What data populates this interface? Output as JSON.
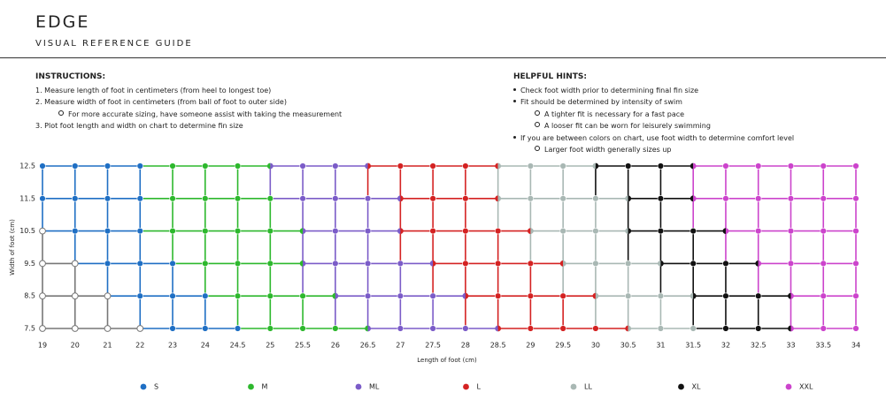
{
  "header": {
    "title": "EDGE",
    "subtitle": "VISUAL REFERENCE GUIDE"
  },
  "instructions": {
    "heading": "INSTRUCTIONS:",
    "items": [
      {
        "text": "1. Measure length of foot in centimeters (from heel to longest toe)"
      },
      {
        "text": "2. Measure width of foot in centimeters (from ball of foot to outer side)",
        "sub": [
          "For more accurate sizing, have someone assist with taking the measurement"
        ]
      },
      {
        "text": "3. Plot foot length and width on chart to determine fin size"
      }
    ]
  },
  "hints": {
    "heading": "HELPFUL HINTS:",
    "items": [
      {
        "text": "Check foot width prior to determining final fin size"
      },
      {
        "text": "Fit should be determined by intensity of swim",
        "sub": [
          "A tighter fit is necessary for a fast pace",
          "A looser fit can be worn for leisurely swimming"
        ]
      },
      {
        "text": "If you are between colors on chart, use foot width to determine comfort level",
        "sub": [
          "Larger foot width generally sizes up"
        ]
      }
    ]
  },
  "chart_data": {
    "type": "grid",
    "x_axis_label": "Length of foot (cm)",
    "y_axis_label": "Width of foot (cm)",
    "x_labels": [
      "19",
      "20",
      "21",
      "22",
      "23",
      "24",
      "24.5",
      "25",
      "25.5",
      "26",
      "26.5",
      "27",
      "27.5",
      "28",
      "28.5",
      "29",
      "29.5",
      "30",
      "30.5",
      "31",
      "31.5",
      "32",
      "32.5",
      "33",
      "33.5",
      "34"
    ],
    "y_labels": [
      "12.5",
      "11.5",
      "10.5",
      "9.5",
      "8.5",
      "7.5"
    ],
    "legend": [
      {
        "name": "S",
        "color": "#1f6fc4"
      },
      {
        "name": "M",
        "color": "#2db82d"
      },
      {
        "name": "ML",
        "color": "#7b5cc8"
      },
      {
        "name": "L",
        "color": "#d42222"
      },
      {
        "name": "LL",
        "color": "#a9b8b4"
      },
      {
        "name": "XL",
        "color": "#111111"
      },
      {
        "name": "XXL",
        "color": "#cc44cc"
      }
    ],
    "rows": [
      [
        "S",
        "S",
        "S",
        "S",
        "M",
        "M",
        "M",
        [
          "M",
          "ML"
        ],
        "ML",
        "ML",
        [
          "ML",
          "L"
        ],
        "L",
        "L",
        "L",
        [
          "L",
          "LL"
        ],
        "LL",
        "LL",
        [
          "LL",
          "XL"
        ],
        "XL",
        "XL",
        [
          "XL",
          "XXL"
        ],
        "XXL",
        "XXL",
        "XXL",
        "XXL",
        "XXL"
      ],
      [
        "S",
        "S",
        "S",
        "S",
        "M",
        "M",
        "M",
        "M",
        "ML",
        "ML",
        "ML",
        [
          "ML",
          "L"
        ],
        "L",
        "L",
        [
          "L",
          "LL"
        ],
        "LL",
        "LL",
        "LL",
        [
          "LL",
          "XL"
        ],
        "XL",
        [
          "XL",
          "XXL"
        ],
        "XXL",
        "XXL",
        "XXL",
        "XXL",
        "XXL"
      ],
      [
        null,
        "S",
        "S",
        "S",
        "M",
        "M",
        "M",
        "M",
        [
          "M",
          "ML"
        ],
        "ML",
        "ML",
        [
          "ML",
          "L"
        ],
        "L",
        "L",
        "L",
        [
          "L",
          "LL"
        ],
        "LL",
        "LL",
        [
          "LL",
          "XL"
        ],
        "XL",
        "XL",
        [
          "XL",
          "XXL"
        ],
        "XXL",
        "XXL",
        "XXL",
        "XXL"
      ],
      [
        null,
        null,
        "S",
        "S",
        "S",
        "M",
        "M",
        "M",
        [
          "M",
          "ML"
        ],
        "ML",
        "ML",
        "ML",
        [
          "ML",
          "L"
        ],
        "L",
        "L",
        "L",
        [
          "L",
          "LL"
        ],
        "LL",
        "LL",
        [
          "LL",
          "XL"
        ],
        "XL",
        "XL",
        [
          "XL",
          "XXL"
        ],
        "XXL",
        "XXL",
        "XXL"
      ],
      [
        null,
        null,
        null,
        "S",
        "S",
        "S",
        "M",
        "M",
        "M",
        [
          "M",
          "ML"
        ],
        "ML",
        "ML",
        "ML",
        [
          "ML",
          "L"
        ],
        "L",
        "L",
        "L",
        [
          "L",
          "LL"
        ],
        "LL",
        "LL",
        [
          "LL",
          "XL"
        ],
        "XL",
        "XL",
        [
          "XL",
          "XXL"
        ],
        "XXL",
        "XXL"
      ],
      [
        null,
        null,
        null,
        null,
        "S",
        "S",
        "S",
        "M",
        "M",
        "M",
        [
          "M",
          "ML"
        ],
        "ML",
        "ML",
        "ML",
        [
          "ML",
          "L"
        ],
        "L",
        "L",
        "L",
        [
          "L",
          "LL"
        ],
        "LL",
        "LL",
        "XL",
        "XL",
        [
          "XL",
          "XXL"
        ],
        "XXL",
        "XXL"
      ]
    ]
  }
}
